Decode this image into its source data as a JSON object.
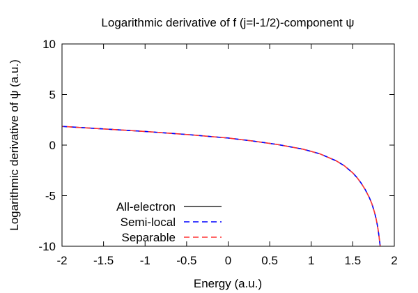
{
  "chart_data": {
    "type": "line",
    "title": "Logarithmic derivative of f (j=l-1/2)-component ψ",
    "xlabel": "Energy (a.u.)",
    "ylabel": "Logarithmic derivative of ψ (a.u.)",
    "xlim": [
      -2,
      2
    ],
    "ylim": [
      -10,
      10
    ],
    "xticks": [
      -2,
      -1.5,
      -1,
      -0.5,
      0,
      0.5,
      1,
      1.5,
      2
    ],
    "xtick_labels": [
      "-2",
      "-1.5",
      "-1",
      "-0.5",
      "0",
      "0.5",
      "1",
      "1.5",
      "2"
    ],
    "yticks": [
      -10,
      -5,
      0,
      5,
      10
    ],
    "ytick_labels": [
      "-10",
      "-5",
      "0",
      "5",
      "10"
    ],
    "grid": false,
    "legend_position": "bottom-left",
    "series": [
      {
        "name": "All-electron",
        "color": "#000000",
        "dash": "solid",
        "x": [
          -2.0,
          -1.5,
          -1.0,
          -0.5,
          0.0,
          0.3,
          0.6,
          0.9,
          1.1,
          1.3,
          1.4,
          1.5,
          1.55,
          1.6,
          1.65,
          1.7,
          1.73,
          1.76,
          1.78,
          1.8,
          1.81,
          1.82,
          1.83
        ],
        "y": [
          1.85,
          1.6,
          1.35,
          1.05,
          0.7,
          0.4,
          0.05,
          -0.4,
          -0.85,
          -1.55,
          -2.05,
          -2.75,
          -3.2,
          -3.75,
          -4.4,
          -5.2,
          -5.8,
          -6.6,
          -7.25,
          -8.1,
          -8.65,
          -9.3,
          -10.0
        ]
      },
      {
        "name": "Semi-local",
        "color": "#0000ff",
        "dash": "dashed",
        "x": [
          -2.0,
          -1.5,
          -1.0,
          -0.5,
          0.0,
          0.3,
          0.6,
          0.9,
          1.1,
          1.3,
          1.4,
          1.5,
          1.55,
          1.6,
          1.65,
          1.7,
          1.73,
          1.76,
          1.78,
          1.8,
          1.81,
          1.82,
          1.83
        ],
        "y": [
          1.85,
          1.6,
          1.35,
          1.05,
          0.7,
          0.4,
          0.05,
          -0.4,
          -0.85,
          -1.55,
          -2.05,
          -2.75,
          -3.2,
          -3.75,
          -4.4,
          -5.2,
          -5.8,
          -6.6,
          -7.25,
          -8.1,
          -8.65,
          -9.3,
          -10.0
        ]
      },
      {
        "name": "Separable",
        "color": "#ff3333",
        "dash": "dashed",
        "x": [
          -2.0,
          -1.5,
          -1.0,
          -0.5,
          0.0,
          0.3,
          0.6,
          0.9,
          1.1,
          1.3,
          1.4,
          1.5,
          1.55,
          1.6,
          1.65,
          1.7,
          1.73,
          1.76,
          1.78,
          1.8,
          1.81,
          1.82,
          1.83
        ],
        "y": [
          1.85,
          1.6,
          1.35,
          1.05,
          0.7,
          0.4,
          0.05,
          -0.4,
          -0.85,
          -1.55,
          -2.05,
          -2.75,
          -3.2,
          -3.75,
          -4.4,
          -5.2,
          -5.8,
          -6.6,
          -7.25,
          -8.1,
          -8.65,
          -9.3,
          -10.0
        ]
      }
    ]
  }
}
